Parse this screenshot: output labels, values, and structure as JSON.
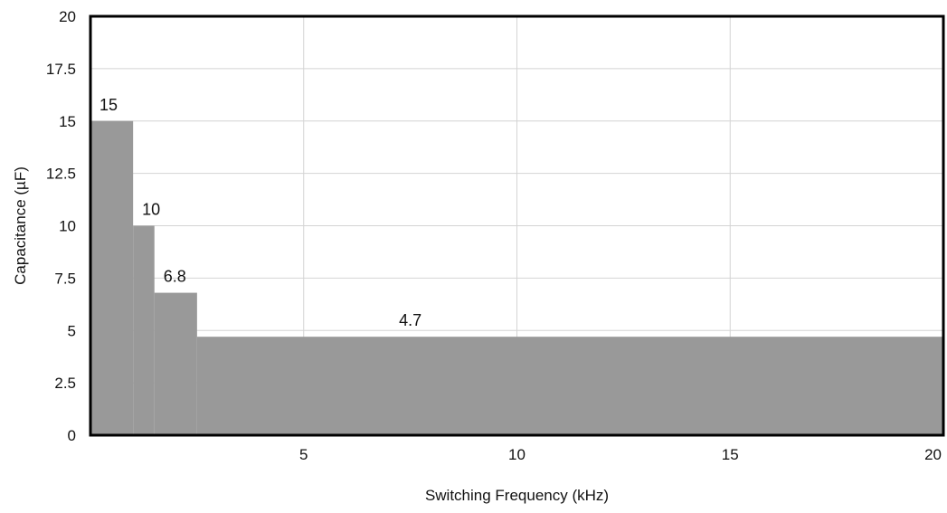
{
  "chart_data": {
    "type": "area",
    "title": "",
    "xlabel": "Switching Frequency (kHz)",
    "ylabel": "Capacitance (µF)",
    "xlim": [
      0,
      20
    ],
    "ylim": [
      0,
      20
    ],
    "x_ticks": [
      "5",
      "10",
      "15",
      "20"
    ],
    "x_tick_values": [
      5,
      10,
      15,
      20
    ],
    "y_ticks": [
      "0",
      "2.5",
      "5",
      "7.5",
      "10",
      "12.5",
      "15",
      "17.5",
      "20"
    ],
    "y_tick_values": [
      0,
      2.5,
      5,
      7.5,
      10,
      12.5,
      15,
      17.5,
      20
    ],
    "grid": true,
    "steps": [
      {
        "x_start": 0,
        "x_end": 1.0,
        "value": 15,
        "label": "15"
      },
      {
        "x_start": 1.0,
        "x_end": 1.5,
        "value": 10,
        "label": "10"
      },
      {
        "x_start": 1.5,
        "x_end": 2.5,
        "value": 6.8,
        "label": "6.8"
      },
      {
        "x_start": 2.5,
        "x_end": 20,
        "value": 4.7,
        "label": "4.7"
      }
    ],
    "fill_color": "#999999",
    "frame_color": "#000000"
  }
}
